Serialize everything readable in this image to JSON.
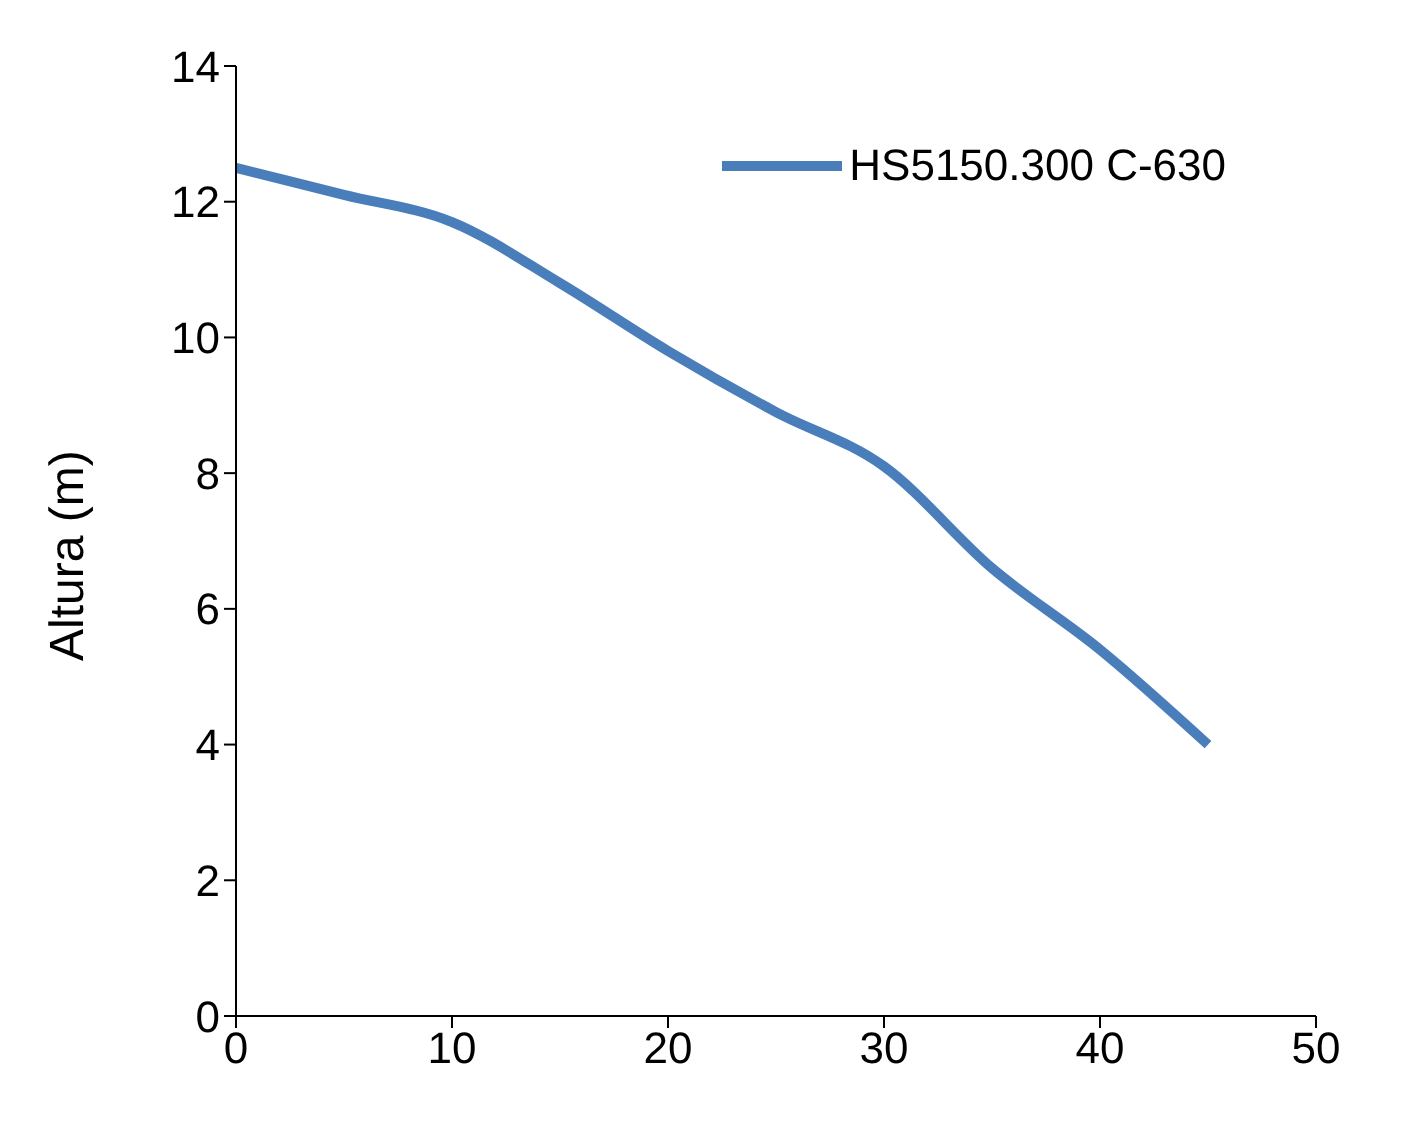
{
  "chart_data": {
    "type": "line",
    "ylabel": "Altura (m)",
    "x": [
      0,
      5,
      10,
      15,
      20,
      25,
      30,
      35,
      40,
      45
    ],
    "series": [
      {
        "name": "HS5150.300 C-630",
        "color": "#4a7ebb",
        "values": [
          12.5,
          12.1,
          11.7,
          10.8,
          9.8,
          8.9,
          8.1,
          6.6,
          5.4,
          4.0
        ]
      }
    ],
    "xlim": [
      0,
      50
    ],
    "xticks": [
      0,
      10,
      20,
      30,
      40,
      50
    ],
    "ylim": [
      0,
      14
    ],
    "yticks": [
      0,
      2,
      4,
      6,
      8,
      10,
      12,
      14
    ],
    "grid": false,
    "legend": "top right",
    "marker": "none",
    "line_style": "solid"
  }
}
